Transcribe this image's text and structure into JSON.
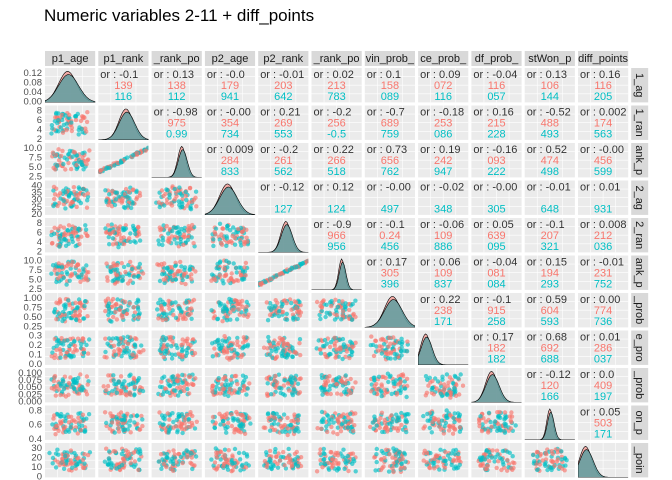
{
  "title": "Numeric variables 2-11 + diff_points",
  "colors": {
    "group_a": "#F8766D",
    "group_b": "#00BFC4",
    "panel_bg": "#EBEBEB",
    "strip_bg": "#D9D9D9",
    "grid": "#FFFFFF",
    "density_fill": "#5E9EA0"
  },
  "chart_data": {
    "type": "scatter",
    "title": "Numeric variables 2-11 + diff_points",
    "variables": [
      "p1_age",
      "p1_rank",
      "p1_rank_po",
      "p2_age",
      "p2_rank",
      "p2_rank_po",
      "p1_win_prob",
      "p1_ace_prob",
      "p1_df_prob",
      "p1_1stWon_p",
      "diff_points"
    ],
    "column_strip_labels": [
      "p1_age",
      "p1_rank",
      "_rank_po",
      "p2_age",
      "p2_rank",
      "_rank_po",
      "vin_prob_",
      "ce_prob_",
      "df_prob_",
      "stWon_p",
      "diff_points"
    ],
    "row_strip_labels": [
      "1_ag",
      "1_ran",
      "ank_p",
      "2_ag",
      "2_ran",
      "ank_p",
      "_prob",
      "e_pro",
      "_prob",
      "on_p",
      "_poin"
    ],
    "x_tick_labels": [
      [
        "20",
        "25",
        "30",
        "35",
        "40"
      ],
      [
        "2",
        "4",
        "6"
      ],
      [
        "2.5",
        "5.0",
        "7.5",
        "10.0"
      ],
      [
        "2",
        "0",
        "2",
        "5",
        "3",
        "0",
        "3",
        "5"
      ],
      [
        "2",
        "4",
        "6",
        "8"
      ],
      [
        "2.5",
        "5.0",
        "7.5",
        "10.0"
      ],
      [
        "0.00",
        "0.05",
        "0.10"
      ],
      [
        "0",
        "0.1",
        "0.2"
      ],
      [
        "0.00",
        "0.05",
        "0.075",
        "0.10"
      ],
      [
        "0.4",
        "0.5",
        "0.6",
        "0.7",
        "0.8"
      ],
      [
        "0",
        "10",
        "20",
        "30"
      ]
    ],
    "y_tick_labels": [
      [
        "0.12",
        "0.08",
        "0.04",
        "0.00"
      ],
      [
        "8",
        "6",
        "4",
        "2"
      ],
      [
        "10.0",
        "7.5",
        "5.0",
        "2.5"
      ],
      [
        "40",
        "35",
        "30",
        "25",
        "20"
      ],
      [
        "8",
        "6",
        "4",
        "2"
      ],
      [
        "10.0",
        "7.5",
        "5.0",
        "2.5"
      ],
      [
        "1.00",
        "0.75",
        "0.50",
        "0.25"
      ],
      [
        "0.3",
        "0.2",
        "0.1",
        "0.0"
      ],
      [
        "0.100",
        "0.075",
        "0.050",
        "0.025",
        "0.000"
      ],
      [
        "0.8",
        "0.6",
        "0.4"
      ],
      [
        "30",
        "20",
        "10",
        "0"
      ]
    ],
    "correlations": [
      {
        "row": 0,
        "col": 1,
        "corr": "or : -0.1",
        "a": "139",
        "b": "116"
      },
      {
        "row": 0,
        "col": 2,
        "corr": "or : 0.13",
        "a": "138",
        "b": "112"
      },
      {
        "row": 0,
        "col": 3,
        "corr": "or : -0.0",
        "a": "179",
        "b": "941"
      },
      {
        "row": 0,
        "col": 4,
        "corr": "or : -0.01",
        "a": "203",
        "b": "642"
      },
      {
        "row": 0,
        "col": 5,
        "corr": "or : 0.02",
        "a": "213",
        "b": "783"
      },
      {
        "row": 0,
        "col": 6,
        "corr": "or : 0.1",
        "a": "158",
        "b": "089"
      },
      {
        "row": 0,
        "col": 7,
        "corr": "or : 0.09",
        "a": "072",
        "b": "116"
      },
      {
        "row": 0,
        "col": 8,
        "corr": "or : -0.04",
        "a": "116",
        "b": "057"
      },
      {
        "row": 0,
        "col": 9,
        "corr": "or : 0.13",
        "a": "106",
        "b": "144"
      },
      {
        "row": 0,
        "col": 10,
        "corr": "or : 0.16",
        "a": "116",
        "b": "205"
      },
      {
        "row": 1,
        "col": 2,
        "corr": "or : -0.98",
        "a": "975",
        "b": "0.99"
      },
      {
        "row": 1,
        "col": 3,
        "corr": "or : -0.00",
        "a": "354",
        "b": "734"
      },
      {
        "row": 1,
        "col": 4,
        "corr": "or : 0.21",
        "a": "269",
        "b": "553"
      },
      {
        "row": 1,
        "col": 5,
        "corr": "or : -0.2",
        "a": "256",
        "b": "-0.5"
      },
      {
        "row": 1,
        "col": 6,
        "corr": "or : -0.7",
        "a": "689",
        "b": "759"
      },
      {
        "row": 1,
        "col": 7,
        "corr": "or : -0.18",
        "a": "253",
        "b": "086"
      },
      {
        "row": 1,
        "col": 8,
        "corr": "or : 0.16",
        "a": "215",
        "b": "228"
      },
      {
        "row": 1,
        "col": 9,
        "corr": "or : -0.52",
        "a": "488",
        "b": "493"
      },
      {
        "row": 1,
        "col": 10,
        "corr": "or : 0.002",
        "a": "174",
        "b": "563"
      },
      {
        "row": 2,
        "col": 3,
        "corr": "or : 0.009",
        "a": "284",
        "b": "833"
      },
      {
        "row": 2,
        "col": 4,
        "corr": "or : -0.2",
        "a": "261",
        "b": "562"
      },
      {
        "row": 2,
        "col": 5,
        "corr": "or : 0.22",
        "a": "266",
        "b": "518"
      },
      {
        "row": 2,
        "col": 6,
        "corr": "or : 0.73",
        "a": "656",
        "b": "762"
      },
      {
        "row": 2,
        "col": 7,
        "corr": "or : 0.19",
        "a": "242",
        "b": "947"
      },
      {
        "row": 2,
        "col": 8,
        "corr": "or : -0.16",
        "a": "093",
        "b": "222"
      },
      {
        "row": 2,
        "col": 9,
        "corr": "or : 0.52",
        "a": "474",
        "b": "498"
      },
      {
        "row": 2,
        "col": 10,
        "corr": "or : -0.00",
        "a": "456",
        "b": "599"
      },
      {
        "row": 3,
        "col": 4,
        "corr": "or : -0.12",
        "a": "",
        "b": "127"
      },
      {
        "row": 3,
        "col": 5,
        "corr": "or : 0.12",
        "a": "",
        "b": "124"
      },
      {
        "row": 3,
        "col": 6,
        "corr": "or : -0.00",
        "a": "",
        "b": "497"
      },
      {
        "row": 3,
        "col": 7,
        "corr": "or : -0.02",
        "a": "",
        "b": "348"
      },
      {
        "row": 3,
        "col": 8,
        "corr": "or : -0.00",
        "a": "",
        "b": "305"
      },
      {
        "row": 3,
        "col": 9,
        "corr": "or : -0.01",
        "a": "",
        "b": "648"
      },
      {
        "row": 3,
        "col": 10,
        "corr": "or : 0.01",
        "a": "",
        "b": "931"
      },
      {
        "row": 4,
        "col": 5,
        "corr": "or : -0.9",
        "a": "966",
        "b": "956"
      },
      {
        "row": 4,
        "col": 6,
        "corr": "or : -0.1",
        "a": "0.24",
        "b": "456"
      },
      {
        "row": 4,
        "col": 7,
        "corr": "or : -0.06",
        "a": "109",
        "b": "886"
      },
      {
        "row": 4,
        "col": 8,
        "corr": "or : 0.05",
        "a": "639",
        "b": "095"
      },
      {
        "row": 4,
        "col": 9,
        "corr": "or : -0.1",
        "a": "207",
        "b": "321"
      },
      {
        "row": 4,
        "col": 10,
        "corr": "or : 0.008",
        "a": "212",
        "b": "036"
      },
      {
        "row": 5,
        "col": 6,
        "corr": "or : 0.17",
        "a": "305",
        "b": "396"
      },
      {
        "row": 5,
        "col": 7,
        "corr": "or : 0.06",
        "a": "109",
        "b": "837"
      },
      {
        "row": 5,
        "col": 8,
        "corr": "or : -0.04",
        "a": "081",
        "b": "084"
      },
      {
        "row": 5,
        "col": 9,
        "corr": "or : 0.15",
        "a": "194",
        "b": "293"
      },
      {
        "row": 5,
        "col": 10,
        "corr": "or : -0.01",
        "a": "231",
        "b": "752"
      },
      {
        "row": 6,
        "col": 7,
        "corr": "or : 0.22",
        "a": "238",
        "b": "171"
      },
      {
        "row": 6,
        "col": 8,
        "corr": "or : -0.1",
        "a": "915",
        "b": "258"
      },
      {
        "row": 6,
        "col": 9,
        "corr": "or : 0.59",
        "a": "604",
        "b": "593"
      },
      {
        "row": 6,
        "col": 10,
        "corr": "or : 0.00",
        "a": "774",
        "b": "736"
      },
      {
        "row": 7,
        "col": 8,
        "corr": "or : 0.17",
        "a": "182",
        "b": "182"
      },
      {
        "row": 7,
        "col": 9,
        "corr": "or : 0.68",
        "a": "692",
        "b": "688"
      },
      {
        "row": 7,
        "col": 10,
        "corr": "or : 0.01",
        "a": "286",
        "b": "037"
      },
      {
        "row": 8,
        "col": 9,
        "corr": "or : -0.12",
        "a": "120",
        "b": "166"
      },
      {
        "row": 8,
        "col": 10,
        "corr": "or : 0.0",
        "a": "409",
        "b": "197"
      },
      {
        "row": 9,
        "col": 10,
        "corr": "or : 0.05",
        "a": "503",
        "b": "171"
      }
    ]
  }
}
